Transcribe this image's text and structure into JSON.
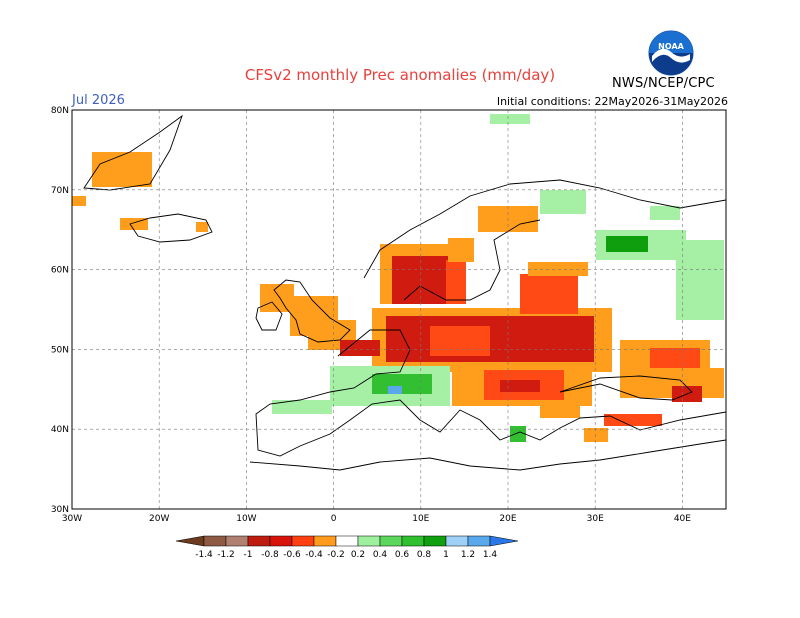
{
  "header": {
    "title": "CFSv2 monthly Prec anomalies (mm/day)",
    "month": "Jul 2026",
    "initial_conditions": "Initial conditions: 22May2026-31May2026",
    "agency": "NWS/NCEP/CPC",
    "logo_text": "NOAA"
  },
  "map": {
    "lat_labels": [
      "80N",
      "70N",
      "60N",
      "50N",
      "40N",
      "30N"
    ],
    "lon_labels": [
      "30W",
      "20W",
      "10W",
      "0",
      "10E",
      "20E",
      "30E",
      "40E"
    ],
    "lon_range": [
      -30,
      45
    ],
    "lat_range": [
      30,
      80
    ]
  },
  "legend": {
    "labels": [
      "-1.4",
      "-1.2",
      "-1",
      "-0.8",
      "-0.6",
      "-0.4",
      "-0.2",
      "0.2",
      "0.4",
      "0.6",
      "0.8",
      "1",
      "1.2",
      "1.4"
    ],
    "colors": [
      "#6b3a1f",
      "#8e5a44",
      "#b08070",
      "#bd1c0f",
      "#d6140a",
      "#ff4010",
      "#ff9c1e",
      "#ffffff",
      "#9ef09e",
      "#5cd65c",
      "#2fbf2f",
      "#0f9f0f",
      "#9ed0f8",
      "#5aa8ec",
      "#2a78e8"
    ]
  },
  "colors": {
    "dry_strong": "#d01c10",
    "dry_medium": "#ff4a16",
    "dry_light": "#ff9e1c",
    "wet_light": "#a6f0a6",
    "wet_medium": "#32c032",
    "wet_strong": "#0e9e0e",
    "wet_blue": "#5aa8ec"
  }
}
